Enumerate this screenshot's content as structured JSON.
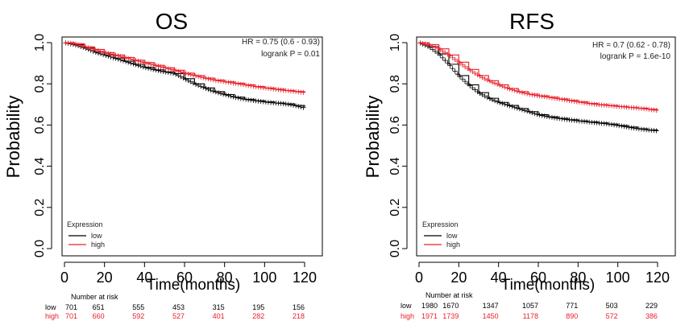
{
  "colors": {
    "low": "#000000",
    "high": "#e8202a",
    "axis": "#000000"
  },
  "chart_data": [
    {
      "type": "line",
      "panel": "os",
      "title": "OS",
      "xlabel": "Time(months)",
      "ylabel": "Probability",
      "xlim": [
        0,
        120
      ],
      "ylim": [
        0,
        1
      ],
      "xticks": [
        "0",
        "20",
        "40",
        "60",
        "80",
        "100",
        "120"
      ],
      "yticks": [
        "0.0",
        "0.2",
        "0.4",
        "0.6",
        "0.8",
        "1.0"
      ],
      "stats": [
        "HR = 0.75 (0.6 - 0.93)",
        "logrank P = 0.01"
      ],
      "legend": {
        "title": "Expression",
        "position": "bottom-left",
        "entries": [
          "low",
          "high"
        ]
      },
      "series": [
        {
          "name": "low",
          "color": "#000000",
          "x": [
            0,
            5,
            10,
            15,
            20,
            25,
            30,
            35,
            40,
            45,
            50,
            55,
            60,
            65,
            70,
            75,
            80,
            85,
            90,
            95,
            100,
            105,
            110,
            115,
            120
          ],
          "y": [
            1.0,
            0.99,
            0.975,
            0.955,
            0.94,
            0.925,
            0.91,
            0.895,
            0.88,
            0.868,
            0.858,
            0.85,
            0.825,
            0.8,
            0.78,
            0.762,
            0.748,
            0.735,
            0.725,
            0.718,
            0.712,
            0.707,
            0.703,
            0.695,
            0.683
          ]
        },
        {
          "name": "high",
          "color": "#e8202a",
          "x": [
            0,
            5,
            10,
            15,
            20,
            25,
            30,
            35,
            40,
            45,
            50,
            55,
            60,
            65,
            70,
            75,
            80,
            85,
            90,
            95,
            100,
            105,
            110,
            115,
            120
          ],
          "y": [
            1.0,
            0.995,
            0.98,
            0.967,
            0.952,
            0.94,
            0.928,
            0.915,
            0.903,
            0.89,
            0.878,
            0.866,
            0.852,
            0.84,
            0.828,
            0.818,
            0.81,
            0.803,
            0.795,
            0.787,
            0.78,
            0.774,
            0.768,
            0.763,
            0.757
          ]
        }
      ],
      "risk": {
        "header": "Number at risk",
        "rows": [
          {
            "label": "low",
            "values": [
              "701",
              "651",
              "555",
              "453",
              "315",
              "195",
              "156"
            ]
          },
          {
            "label": "high",
            "values": [
              "701",
              "660",
              "592",
              "527",
              "401",
              "282",
              "218"
            ]
          }
        ]
      }
    },
    {
      "type": "line",
      "panel": "rfs",
      "title": "RFS",
      "xlabel": "Time(months)",
      "ylabel": "Probability",
      "xlim": [
        0,
        120
      ],
      "ylim": [
        0,
        1
      ],
      "xticks": [
        "0",
        "20",
        "40",
        "60",
        "80",
        "100",
        "120"
      ],
      "yticks": [
        "0.0",
        "0.2",
        "0.4",
        "0.6",
        "0.8",
        "1.0"
      ],
      "stats": [
        "HR = 0.7 (0.62 - 0.78)",
        "logrank P = 1.6e-10"
      ],
      "legend": {
        "title": "Expression",
        "position": "bottom-left",
        "entries": [
          "low",
          "high"
        ]
      },
      "series": [
        {
          "name": "low",
          "color": "#000000",
          "x": [
            0,
            5,
            10,
            15,
            20,
            25,
            30,
            35,
            40,
            45,
            50,
            55,
            60,
            65,
            70,
            75,
            80,
            85,
            90,
            95,
            100,
            105,
            110,
            115,
            120
          ],
          "y": [
            1.0,
            0.98,
            0.945,
            0.895,
            0.84,
            0.795,
            0.757,
            0.73,
            0.71,
            0.695,
            0.68,
            0.665,
            0.65,
            0.64,
            0.632,
            0.626,
            0.62,
            0.615,
            0.61,
            0.605,
            0.598,
            0.59,
            0.582,
            0.576,
            0.572
          ]
        },
        {
          "name": "high",
          "color": "#e8202a",
          "x": [
            0,
            5,
            10,
            15,
            20,
            25,
            30,
            35,
            40,
            45,
            50,
            55,
            60,
            65,
            70,
            75,
            80,
            85,
            90,
            95,
            100,
            105,
            110,
            115,
            120
          ],
          "y": [
            1.0,
            0.99,
            0.97,
            0.94,
            0.905,
            0.87,
            0.84,
            0.815,
            0.795,
            0.777,
            0.762,
            0.75,
            0.742,
            0.735,
            0.727,
            0.72,
            0.712,
            0.705,
            0.699,
            0.695,
            0.69,
            0.686,
            0.682,
            0.677,
            0.67
          ]
        }
      ],
      "risk": {
        "header": "Number at risk",
        "rows": [
          {
            "label": "low",
            "values": [
              "1980",
              "1670",
              "1347",
              "1057",
              "771",
              "503",
              "229"
            ]
          },
          {
            "label": "high",
            "values": [
              "1971",
              "1739",
              "1450",
              "1178",
              "890",
              "572",
              "386"
            ]
          }
        ]
      }
    }
  ]
}
